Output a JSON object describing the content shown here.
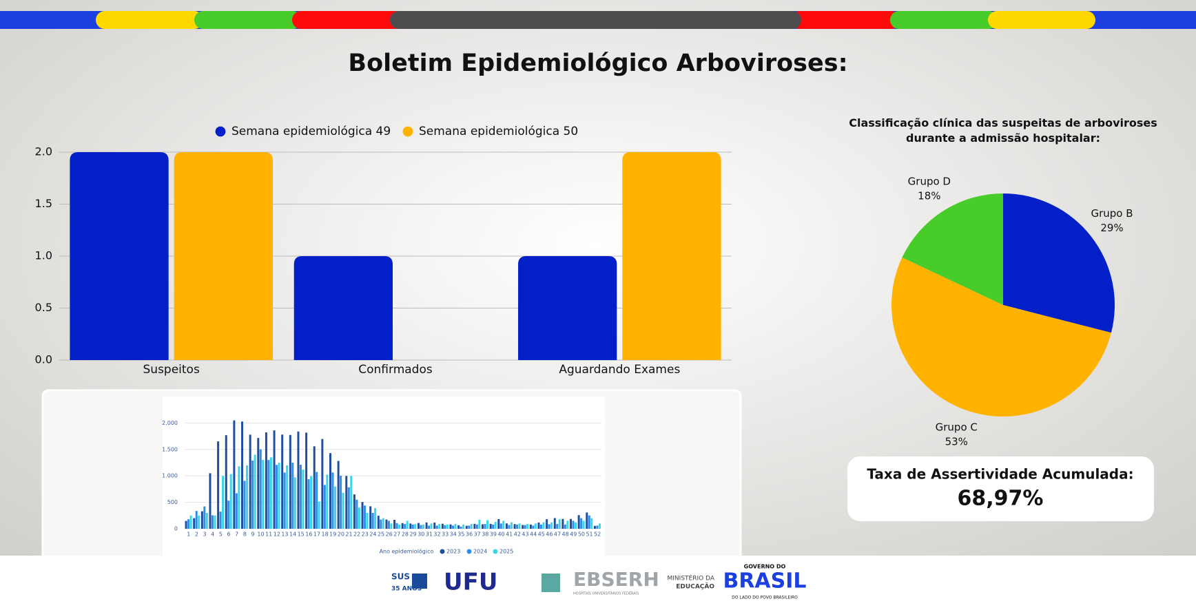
{
  "title": "Boletim Epidemiológico Arboviroses:",
  "chart_data": [
    {
      "type": "bar",
      "categories": [
        "Suspeitos",
        "Confirmados",
        "Aguardando Exames"
      ],
      "series": [
        {
          "name": "Semana epidemiológica 49",
          "color": "#0320c8",
          "values": [
            2,
            1,
            1
          ]
        },
        {
          "name": "Semana epidemiológica 50",
          "color": "#ffb300",
          "values": [
            2,
            0,
            2
          ]
        }
      ],
      "ylim": [
        0,
        2
      ],
      "yticks": [
        {
          "value": 0,
          "label": "0.0"
        },
        {
          "value": 0.5,
          "label": "0.5"
        },
        {
          "value": 1,
          "label": "1.0"
        },
        {
          "value": 1.5,
          "label": "1.5"
        },
        {
          "value": 2,
          "label": "2.0"
        }
      ],
      "grid": true,
      "legend": "top"
    },
    {
      "type": "pie",
      "title": "Classificação clínica das suspeitas de arboviroses durante a admissão hospitalar:",
      "categories": [
        "Grupo B",
        "Grupo C",
        "Grupo D"
      ],
      "values": [
        29,
        53,
        18
      ],
      "value_labels": [
        "29%",
        "53%",
        "18%"
      ],
      "colors": [
        "#0320c8",
        "#ffb300",
        "#47cc2a"
      ]
    },
    {
      "type": "bar",
      "legend_title": "Ano epidemiológico",
      "categories": [
        "1",
        "2",
        "3",
        "4",
        "5",
        "6",
        "7",
        "8",
        "9",
        "10",
        "11",
        "12",
        "13",
        "14",
        "15",
        "16",
        "17",
        "18",
        "19",
        "20",
        "21",
        "22",
        "23",
        "24",
        "25",
        "26",
        "27",
        "28",
        "29",
        "30",
        "31",
        "32",
        "33",
        "34",
        "35",
        "36",
        "37",
        "38",
        "39",
        "40",
        "41",
        "42",
        "43",
        "44",
        "45",
        "46",
        "47",
        "48",
        "49",
        "50",
        "51",
        "52"
      ],
      "series": [
        {
          "name": "2023",
          "color": "#1f4e9c",
          "values": [
            148,
            200,
            330,
            1050,
            1652,
            1768,
            2049,
            2028,
            1779,
            1717,
            1823,
            1860,
            1780,
            1774,
            1839,
            1817,
            1559,
            1697,
            1431,
            1282,
            999,
            649,
            506,
            425,
            246,
            174,
            169,
            107,
            99,
            109,
            118,
            117,
            94,
            81,
            66,
            57,
            93,
            84,
            92,
            182,
            101,
            88,
            72,
            79,
            117,
            181,
            201,
            186,
            186,
            257,
            307,
            54
          ]
        },
        {
          "name": "2024",
          "color": "#2f8fe8",
          "values": [
            180,
            337,
            423,
            255,
            324,
            532,
            672,
            906,
            1288,
            1500,
            1300,
            1208,
            1062,
            1250,
            1210,
            936,
            1074,
            829,
            1064,
            1003,
            784,
            550,
            440,
            300,
            174,
            150,
            107,
            90,
            80,
            70,
            60,
            60,
            70,
            60,
            40,
            60,
            80,
            90,
            80,
            100,
            72,
            80,
            70,
            60,
            80,
            87,
            90,
            80,
            150,
            200,
            250,
            60
          ]
        },
        {
          "name": "2025",
          "color": "#38d6e8",
          "values": [
            250,
            250,
            300,
            250,
            997,
            1033,
            1181,
            1200,
            1400,
            1300,
            1350,
            1250,
            1200,
            972,
            1118,
            994,
            515,
            1024,
            800,
            680,
            1000,
            400,
            300,
            390,
            200,
            100,
            80,
            150,
            90,
            80,
            100,
            90,
            80,
            90,
            80,
            90,
            171,
            163,
            130,
            150,
            120,
            100,
            90,
            100,
            120,
            120,
            180,
            150,
            120,
            150,
            200,
            100
          ]
        }
      ],
      "ylim": [
        0,
        2200
      ],
      "yticks": [
        0,
        500,
        {
          "value": 1000,
          "label": "1.000"
        },
        {
          "value": 1500,
          "label": "1.500"
        },
        {
          "value": 2000,
          "label": "2.000"
        }
      ],
      "grid": true,
      "legend": "bottom"
    }
  ],
  "kpi": {
    "label": "Taxa de Assertividade Acumulada:",
    "value": "68,97%"
  },
  "footer": {
    "sus": "SUS",
    "sus_years": "35 ANOS",
    "ufu": "UFU",
    "ebserh": "EBSERH",
    "ebserh_sub": "HOSPITAIS UNIVERSITÁRIOS FEDERAIS",
    "mec1": "MINISTÉRIO DA",
    "mec2": "EDUCAÇÃO",
    "gov1": "GOVERNO DO",
    "gov2": "BRASIL",
    "gov3": "DO LADO DO POVO BRASILEIRO"
  }
}
